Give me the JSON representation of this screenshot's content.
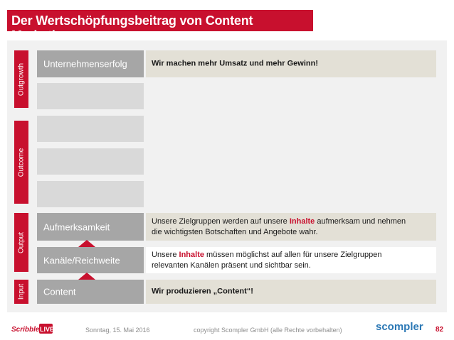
{
  "title": "Der Wertschöpfungsbeitrag von Content Marketing",
  "colors": {
    "accent": "#c8102e",
    "box": "#a6a6a6",
    "box_empty": "#d9d9d9",
    "beige": "#e3e0d6"
  },
  "levels": {
    "outgrowth": "Outgrowth",
    "outcome": "Outcome",
    "output": "Output",
    "input": "Input"
  },
  "rows": {
    "unternehmenserfolg": {
      "label": "Unternehmenserfolg",
      "text": "Wir machen mehr Umsatz und mehr Gewinn!"
    },
    "aufmerksamkeit": {
      "label": "Aufmerksamkeit",
      "line1_a": "Unsere Zielgruppen werden auf unsere ",
      "line1_hl": "Inhalte",
      "line1_b": " aufmerksam und nehmen",
      "line2": "die wichtigsten Botschaften und Angebote wahr."
    },
    "kanaele": {
      "label": "Kanäle/Reichweite",
      "line1_a": "Unsere ",
      "line1_hl": "Inhalte",
      "line1_b": " müssen möglichst auf allen für unsere Zielgruppen",
      "line2": "relevanten Kanälen präsent und sichtbar sein."
    },
    "content": {
      "label": "Content",
      "text": "Wir produzieren „Content“!"
    }
  },
  "footer": {
    "logo_left": "ScribbleLIVE",
    "date": "Sonntag, 15. Mai 2016",
    "copyright": "copyright Scompler GmbH (alle Rechte vorbehalten)",
    "logo_right": "scompler",
    "page": "82"
  }
}
